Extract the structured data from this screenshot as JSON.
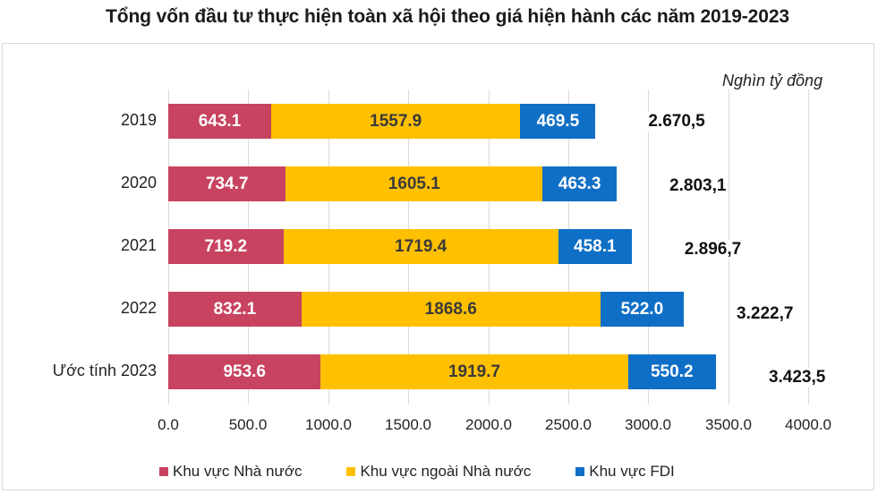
{
  "title": "Tổng vốn đầu tư thực hiện toàn xã hội theo giá hiện hành các năm 2019-2023",
  "unit_label": "Nghìn tỷ đồng",
  "colors": {
    "state": "#c8435f",
    "non_state": "#ffc000",
    "fdi": "#0f6fc6"
  },
  "chart_data": {
    "type": "bar",
    "orientation": "horizontal",
    "stacked": true,
    "title": "Tổng vốn đầu tư thực hiện toàn xã hội theo giá hiện hành các năm 2019-2023",
    "unit": "Nghìn tỷ đồng",
    "categories": [
      "2019",
      "2020",
      "2021",
      "2022",
      "Ước tính 2023"
    ],
    "series": [
      {
        "name": "Khu vực Nhà nước",
        "color": "#c8435f",
        "values": [
          643.1,
          734.7,
          719.2,
          832.1,
          953.6
        ],
        "labels": [
          "643.1",
          "734.7",
          "719.2",
          "832.1",
          "953.6"
        ]
      },
      {
        "name": "Khu vực ngoài Nhà nước",
        "color": "#ffc000",
        "values": [
          1557.9,
          1605.1,
          1719.4,
          1868.6,
          1919.7
        ],
        "labels": [
          "1557.9",
          "1605.1",
          "1719.4",
          "1868.6",
          "1919.7"
        ]
      },
      {
        "name": "Khu vực FDI",
        "color": "#0f6fc6",
        "values": [
          469.5,
          463.3,
          458.1,
          522.0,
          550.2
        ],
        "labels": [
          "469.5",
          "463.3",
          "458.1",
          "522.0",
          "550.2"
        ]
      }
    ],
    "totals": [
      2670.5,
      2803.1,
      2896.7,
      3222.7,
      3423.5
    ],
    "total_labels": [
      "2.670,5",
      "2.803,1",
      "2.896,7",
      "3.222,7",
      "3.423,5"
    ],
    "xlabel": "",
    "ylabel": "",
    "xlim": [
      0,
      4000
    ],
    "x_ticks": [
      "0.0",
      "500.0",
      "1000.0",
      "1500.0",
      "2000.0",
      "2500.0",
      "3000.0",
      "3500.0",
      "4000.0"
    ],
    "grid": true,
    "legend_position": "bottom"
  }
}
